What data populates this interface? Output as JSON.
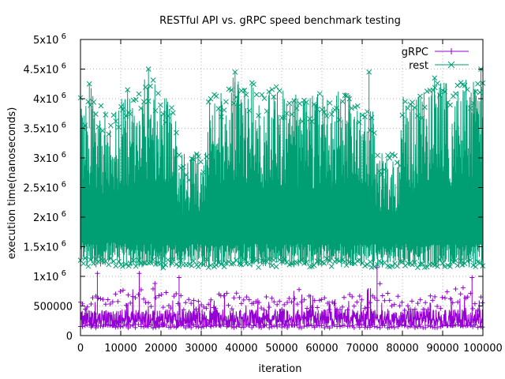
{
  "chart_data": {
    "type": "line",
    "title": "RESTful API vs. gRPC speed benchmark testing",
    "xlabel": "iteration",
    "ylabel": "execution time(nanoseconds)",
    "xlim": [
      0,
      100000
    ],
    "ylim": [
      0,
      5000000
    ],
    "grid": true,
    "legend_position": "top-right",
    "x_ticks": [
      0,
      10000,
      20000,
      30000,
      40000,
      50000,
      60000,
      70000,
      80000,
      90000,
      100000
    ],
    "x_tick_labels": [
      "0",
      "10000",
      "20000",
      "30000",
      "40000",
      "50000",
      "60000",
      "70000",
      "80000",
      "90000",
      "100000"
    ],
    "y_ticks": [
      {
        "value": 0,
        "base": "0",
        "exp": ""
      },
      {
        "value": 500000,
        "base": "500000",
        "exp": ""
      },
      {
        "value": 1000000,
        "base": "1x10",
        "exp": "6"
      },
      {
        "value": 1500000,
        "base": "1.5x10",
        "exp": "6"
      },
      {
        "value": 2000000,
        "base": "2x10",
        "exp": "6"
      },
      {
        "value": 2500000,
        "base": "2.5x10",
        "exp": "6"
      },
      {
        "value": 3000000,
        "base": "3x10",
        "exp": "6"
      },
      {
        "value": 3500000,
        "base": "3.5x10",
        "exp": "6"
      },
      {
        "value": 4000000,
        "base": "4x10",
        "exp": "6"
      },
      {
        "value": 4500000,
        "base": "4.5x10",
        "exp": "6"
      },
      {
        "value": 5000000,
        "base": "5x10",
        "exp": "6"
      }
    ],
    "series": [
      {
        "name": "gRPC",
        "color": "#9400d3",
        "marker": "plus",
        "x": [
          0,
          5000,
          10000,
          15000,
          20000,
          25000,
          30000,
          35000,
          40000,
          45000,
          50000,
          55000,
          60000,
          65000,
          70000,
          75000,
          80000,
          85000,
          90000,
          95000,
          100000
        ],
        "y_min": [
          130000,
          130000,
          130000,
          130000,
          130000,
          130000,
          130000,
          130000,
          130000,
          130000,
          130000,
          130000,
          130000,
          130000,
          130000,
          130000,
          130000,
          130000,
          130000,
          130000,
          130000
        ],
        "y_max": [
          600000,
          700000,
          750000,
          880000,
          750000,
          700000,
          600000,
          750000,
          720000,
          650000,
          700000,
          800000,
          650000,
          700000,
          750000,
          1150000,
          550000,
          620000,
          780000,
          820000,
          650000
        ],
        "spikes": [
          {
            "x": 4200,
            "y": 1050000
          },
          {
            "x": 14600,
            "y": 1050000
          },
          {
            "x": 18500,
            "y": 880000
          },
          {
            "x": 24500,
            "y": 980000
          },
          {
            "x": 73700,
            "y": 1150000
          },
          {
            "x": 97300,
            "y": 980000
          }
        ]
      },
      {
        "name": "rest",
        "color": "#009e73",
        "marker": "cross",
        "x": [
          0,
          2500,
          5000,
          7500,
          10000,
          12500,
          15000,
          17500,
          20000,
          22500,
          25000,
          27500,
          30000,
          32500,
          35000,
          37500,
          40000,
          42500,
          45000,
          47500,
          50000,
          52500,
          55000,
          57500,
          60000,
          62500,
          65000,
          67500,
          70000,
          72500,
          75000,
          77500,
          80000,
          82500,
          85000,
          87500,
          90000,
          92500,
          95000,
          97500,
          100000
        ],
        "y_min": [
          1200000,
          1150000,
          1150000,
          1200000,
          1150000,
          1150000,
          1150000,
          1150000,
          1100000,
          1150000,
          1150000,
          1150000,
          1150000,
          1150000,
          1150000,
          1150000,
          1150000,
          1150000,
          1150000,
          1150000,
          1150000,
          1150000,
          1150000,
          1150000,
          1150000,
          1150000,
          1150000,
          1150000,
          1150000,
          1150000,
          1150000,
          1150000,
          1150000,
          1150000,
          1150000,
          1150000,
          1150000,
          1150000,
          1150000,
          1150000,
          1150000
        ],
        "y_max": [
          3800000,
          4250000,
          3900000,
          3700000,
          4000000,
          4100000,
          4300000,
          4450000,
          4100000,
          4000000,
          3200000,
          3000000,
          4050000,
          4300000,
          4150000,
          4400000,
          4250000,
          4300000,
          4100000,
          4300000,
          4150000,
          4100000,
          4050000,
          4050000,
          4150000,
          4100000,
          4150000,
          4050000,
          4000000,
          3950000,
          3200000,
          3100000,
          4200000,
          3950000,
          4150000,
          4200000,
          4350000,
          4150000,
          4350000,
          4300000,
          4500000
        ],
        "low_bands": [
          {
            "x_from": 24500,
            "x_to": 31500,
            "y_max": 3100000
          },
          {
            "x_from": 73500,
            "x_to": 79500,
            "y_max": 3200000
          }
        ],
        "spikes": [
          {
            "x": 2200,
            "y": 4250000
          },
          {
            "x": 11700,
            "y": 4150000
          },
          {
            "x": 16900,
            "y": 4500000
          },
          {
            "x": 38400,
            "y": 4450000
          },
          {
            "x": 71700,
            "y": 4450000
          },
          {
            "x": 88000,
            "y": 4350000
          },
          {
            "x": 99500,
            "y": 4500000
          }
        ]
      }
    ]
  }
}
